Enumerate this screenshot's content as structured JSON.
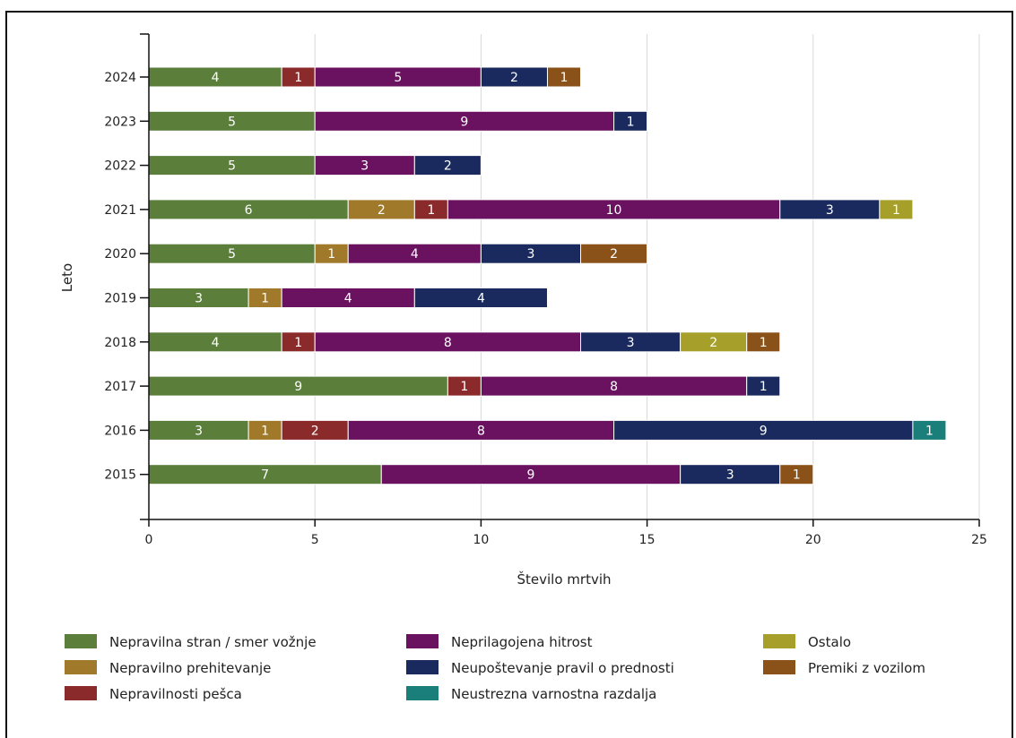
{
  "chart_data": {
    "type": "bar",
    "orientation": "horizontal",
    "stacked": true,
    "title": "",
    "xlabel": "Število mrtvih",
    "ylabel": "Leto",
    "xlim": [
      0,
      25
    ],
    "xticks": [
      0,
      5,
      10,
      15,
      20,
      25
    ],
    "grid": true,
    "legend_position": "bottom",
    "categories": [
      "2024",
      "2023",
      "2022",
      "2021",
      "2020",
      "2019",
      "2018",
      "2017",
      "2016",
      "2015"
    ],
    "series": [
      {
        "name": "Nepravilna stran / smer vožnje",
        "color": "#5b7f3a",
        "values": [
          4,
          5,
          5,
          6,
          5,
          3,
          4,
          9,
          3,
          7
        ]
      },
      {
        "name": "Nepravilno prehitevanje",
        "color": "#a0792a",
        "values": [
          0,
          0,
          0,
          2,
          1,
          1,
          0,
          0,
          1,
          0
        ]
      },
      {
        "name": "Nepravilnosti pešca",
        "color": "#8b2a2a",
        "values": [
          1,
          0,
          0,
          1,
          0,
          0,
          1,
          1,
          2,
          0
        ]
      },
      {
        "name": "Neprilagojena hitrost",
        "color": "#6a1160",
        "values": [
          5,
          9,
          3,
          10,
          4,
          4,
          8,
          8,
          8,
          9
        ]
      },
      {
        "name": "Neupoštevanje pravil o prednosti",
        "color": "#1a2a5e",
        "values": [
          2,
          1,
          2,
          3,
          3,
          4,
          3,
          1,
          9,
          3
        ]
      },
      {
        "name": "Ostalo",
        "color": "#a6a02a",
        "values": [
          0,
          0,
          0,
          1,
          0,
          0,
          2,
          0,
          0,
          0
        ]
      },
      {
        "name": "Neustrezna varnostna razdalja",
        "color": "#1a7f7a",
        "values": [
          0,
          0,
          0,
          0,
          0,
          0,
          0,
          0,
          1,
          0
        ]
      },
      {
        "name": "Premiki z vozilom",
        "color": "#8a5218",
        "values": [
          1,
          0,
          0,
          0,
          2,
          0,
          1,
          0,
          0,
          1
        ]
      }
    ],
    "legend_order": [
      "Nepravilna stran / smer vožnje",
      "Nepravilno prehitevanje",
      "Nepravilnosti pešca",
      "Neprilagojena hitrost",
      "Neupoštevanje pravil o prednosti",
      "Neustrezna varnostna razdalja",
      "Ostalo",
      "Premiki z vozilom"
    ]
  }
}
